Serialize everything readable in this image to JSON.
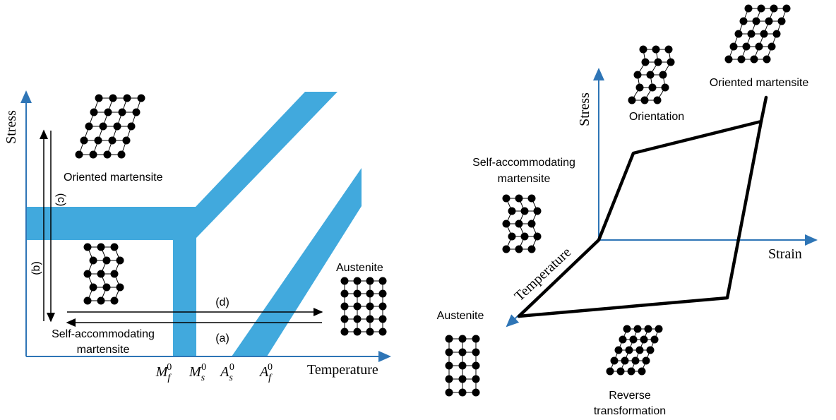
{
  "left": {
    "y_axis_label": "Stress",
    "x_axis_label": "Temperature",
    "oriented_label": "Oriented martensite",
    "self_accommodating_label": [
      "Self-accommodating",
      "martensite"
    ],
    "austenite_label": "Austenite",
    "path_labels": {
      "a": "(a)",
      "b": "(b)",
      "c": "(c)",
      "d": "(d)"
    },
    "temperatures": [
      {
        "base": "M",
        "sub": "f",
        "sup": "0"
      },
      {
        "base": "M",
        "sub": "s",
        "sup": "0"
      },
      {
        "base": "A",
        "sub": "s",
        "sup": "0"
      },
      {
        "base": "A",
        "sub": "f",
        "sup": "0"
      }
    ]
  },
  "right": {
    "y_axis_label": "Stress",
    "x_axis_label": "Strain",
    "z_axis_label": "Temperature",
    "orientation_label": "Orientation",
    "oriented_label": "Oriented martensite",
    "self_accommodating_label": [
      "Self-accommodating",
      "martensite"
    ],
    "austenite_label": "Austenite",
    "reverse_label": [
      "Reverse",
      "transformation"
    ]
  }
}
